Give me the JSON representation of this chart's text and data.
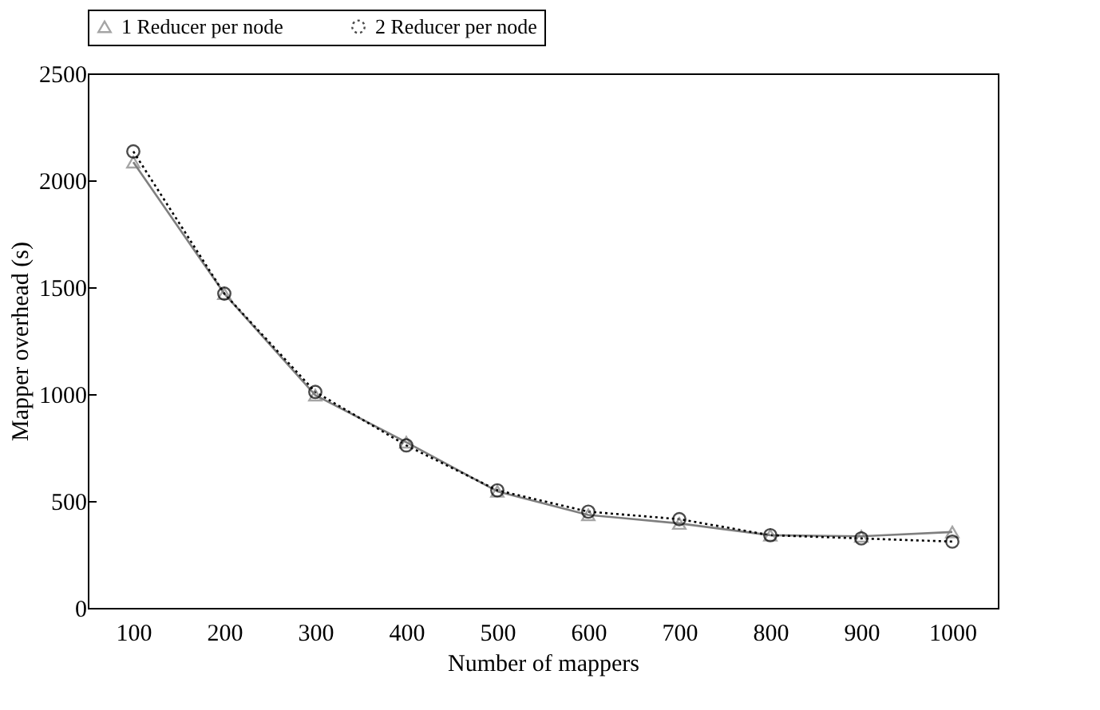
{
  "chart_data": {
    "type": "line",
    "xlabel": "Number of mappers",
    "ylabel": "Mapper  overhead (s)",
    "categories": [
      "100",
      "200",
      "300",
      "400",
      "500",
      "600",
      "700",
      "800",
      "900",
      "1000"
    ],
    "series": [
      {
        "name": "1 Reducer per node",
        "color": "#7f7f7f",
        "marker": "triangle",
        "line_style": "solid",
        "values": [
          2085,
          1470,
          995,
          775,
          545,
          435,
          395,
          340,
          335,
          355
        ]
      },
      {
        "name": "2 Reducer per node",
        "color": "#000000",
        "marker": "circle",
        "line_style": "dotted",
        "values": [
          2135,
          1470,
          1010,
          760,
          550,
          450,
          415,
          340,
          325,
          310
        ]
      }
    ],
    "ylim": [
      0,
      2500
    ],
    "yticks": [
      0,
      500,
      1000,
      1500,
      2000,
      2500
    ],
    "grid": false,
    "legend": "top"
  }
}
